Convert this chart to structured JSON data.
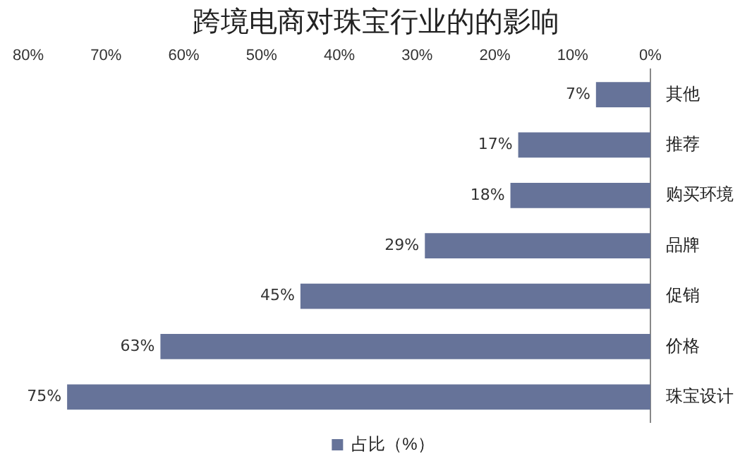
{
  "chart_data": {
    "type": "bar",
    "orientation": "horizontal",
    "title": "跨境电商对珠宝行业的的影响",
    "categories": [
      "其他",
      "推荐",
      "购买环境",
      "品牌",
      "促销",
      "价格",
      "珠宝设计"
    ],
    "series": [
      {
        "name": "占比（%）",
        "color": "#667399",
        "values": [
          7,
          17,
          18,
          29,
          45,
          63,
          75
        ],
        "value_labels": [
          "7%",
          "17%",
          "18%",
          "29%",
          "45%",
          "63%",
          "75%"
        ]
      }
    ],
    "xlim": [
      80,
      0
    ],
    "xticks": [
      {
        "value": 0,
        "label": "0%"
      },
      {
        "value": 10,
        "label": "10%"
      },
      {
        "value": 20,
        "label": "20%"
      },
      {
        "value": 30,
        "label": "30%"
      },
      {
        "value": 40,
        "label": "40%"
      },
      {
        "value": 50,
        "label": "50%"
      },
      {
        "value": 60,
        "label": "60%"
      },
      {
        "value": 70,
        "label": "70%"
      },
      {
        "value": 80,
        "label": "80%"
      }
    ],
    "grid": false,
    "legend": "bottom"
  }
}
